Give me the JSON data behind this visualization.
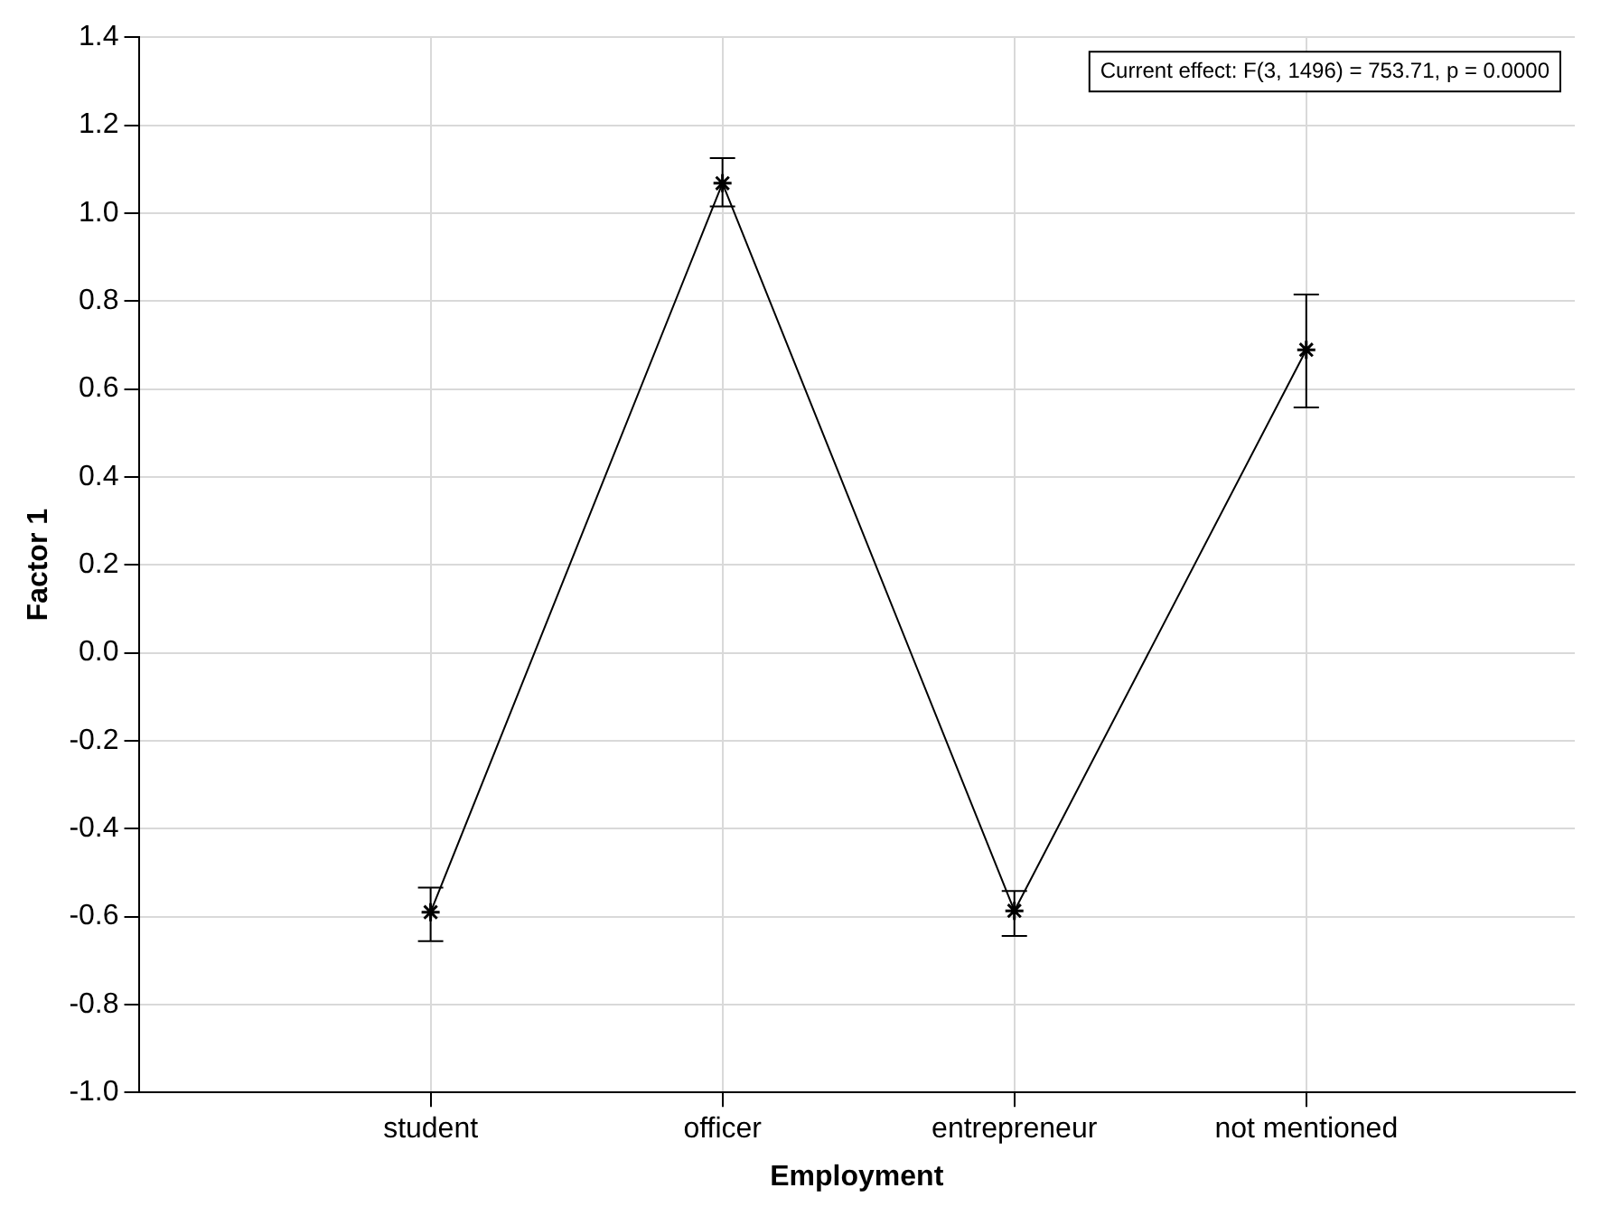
{
  "chart_data": {
    "type": "line",
    "xlabel": "Employment",
    "ylabel": "Factor 1",
    "categories": [
      "student",
      "officer",
      "entrepreneur",
      "not mentioned"
    ],
    "series": [
      {
        "color": "#000000",
        "values": [
          -0.59,
          1.068,
          -0.587,
          0.689
        ],
        "errors": [
          [
            -0.656,
            -0.534
          ],
          [
            1.015,
            1.125
          ],
          [
            -0.644,
            -0.542
          ],
          [
            0.558,
            0.815
          ]
        ]
      }
    ],
    "ylim": [
      -1.0,
      1.4
    ],
    "yticks": [
      {
        "value": -1.0,
        "label": "-1.0"
      },
      {
        "value": -0.8,
        "label": "-0.8"
      },
      {
        "value": -0.6,
        "label": "-0.6"
      },
      {
        "value": -0.4,
        "label": "-0.4"
      },
      {
        "value": -0.2,
        "label": "-0.2"
      },
      {
        "value": 0,
        "label": "0.0"
      },
      {
        "value": 0.2,
        "label": "0.2"
      },
      {
        "value": 0.4,
        "label": "0.4"
      },
      {
        "value": 0.6,
        "label": "0.6"
      },
      {
        "value": 0.8,
        "label": "0.8"
      },
      {
        "value": 1.0,
        "label": "1.0"
      },
      {
        "value": 1.2,
        "label": "1.2"
      },
      {
        "value": 1.4,
        "label": "1.4"
      }
    ],
    "annotations": [
      "Current effect: F(3, 1496) = 753.71, p = 0.0000"
    ],
    "grid": true,
    "legend": false,
    "marker": "cross",
    "line_style": "solid"
  }
}
